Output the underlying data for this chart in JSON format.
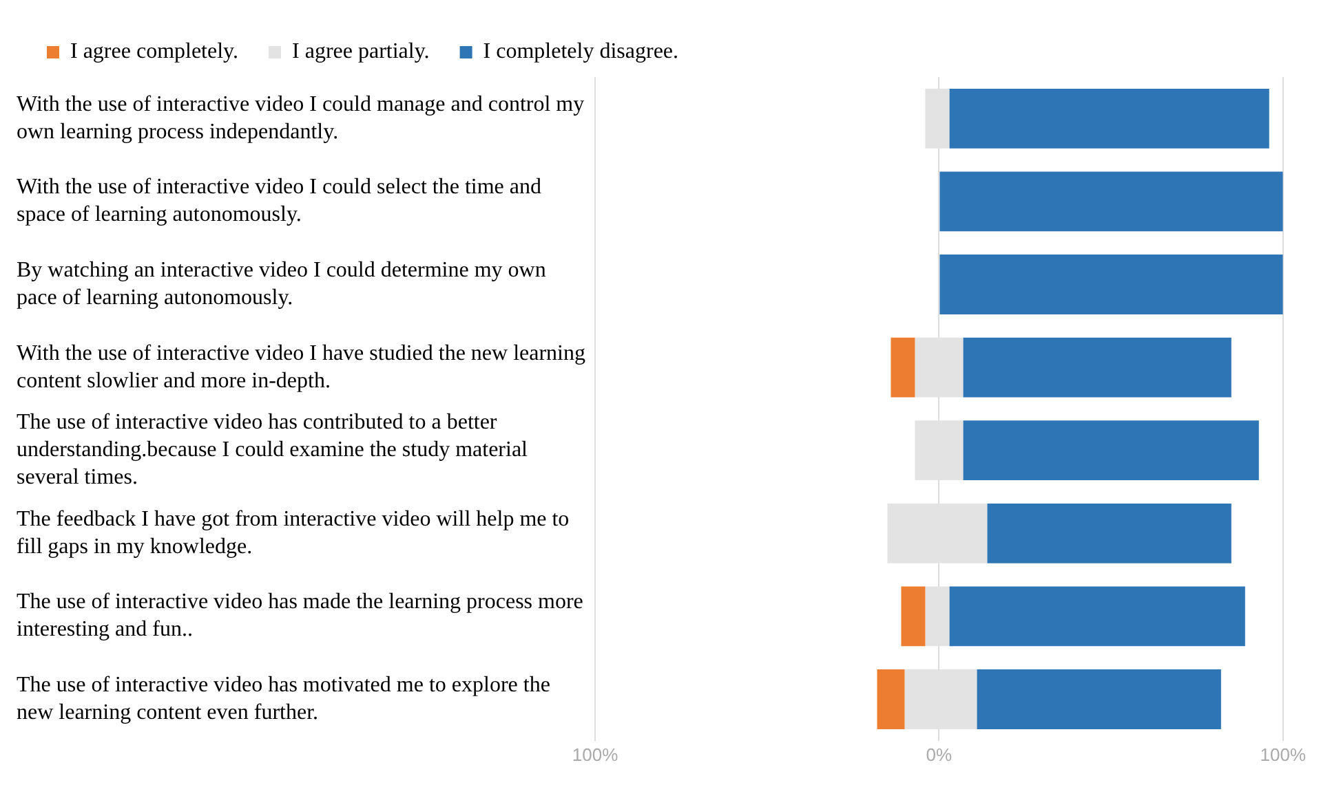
{
  "chart_data": {
    "type": "bar",
    "orientation": "horizontal",
    "categories": [
      "With the use of interactive video I could manage and control my own learning process independantly.",
      "With the use of interactive video I could select the time and space of learning autonomously.",
      "By watching an interactive video I could determine my own pace of learning autonomously.",
      "With the use of interactive video I have studied the new learning content slowlier and more in-depth.",
      "The use of interactive video has contributed to a better understanding.because I could examine the study material several times.",
      "The feedback I have got from interactive video will help me to fill gaps in my knowledge.",
      "The use of interactive video has made the learning process more interesting and fun..",
      "The use of interactive video has motivated me to explore the new learning content even further."
    ],
    "series": [
      {
        "name": "I agree completely.",
        "color": "#ed7d31",
        "base": [
          null,
          null,
          null,
          -14,
          null,
          null,
          -11,
          -18
        ],
        "values": [
          null,
          null,
          null,
          7,
          null,
          null,
          7,
          8
        ]
      },
      {
        "name": "I agree partialy.",
        "color": "#e3e3e3",
        "base": [
          -4,
          null,
          null,
          -7,
          -7,
          -15,
          -4,
          -10
        ],
        "values": [
          7,
          null,
          null,
          14,
          14,
          29,
          7,
          21
        ]
      },
      {
        "name": "I completely disagree.",
        "color": "#2e75b6",
        "base": [
          3,
          0,
          0,
          7,
          7,
          14,
          3,
          11
        ],
        "values": [
          93,
          100,
          100,
          78,
          86,
          71,
          86,
          71
        ]
      }
    ],
    "xlim": [
      -100,
      100
    ],
    "xticks": [
      {
        "value": -100,
        "label": "100%"
      },
      {
        "value": 0,
        "label": "0%"
      },
      {
        "value": 100,
        "label": "100%"
      }
    ],
    "grid": "x",
    "legend": "top left"
  }
}
